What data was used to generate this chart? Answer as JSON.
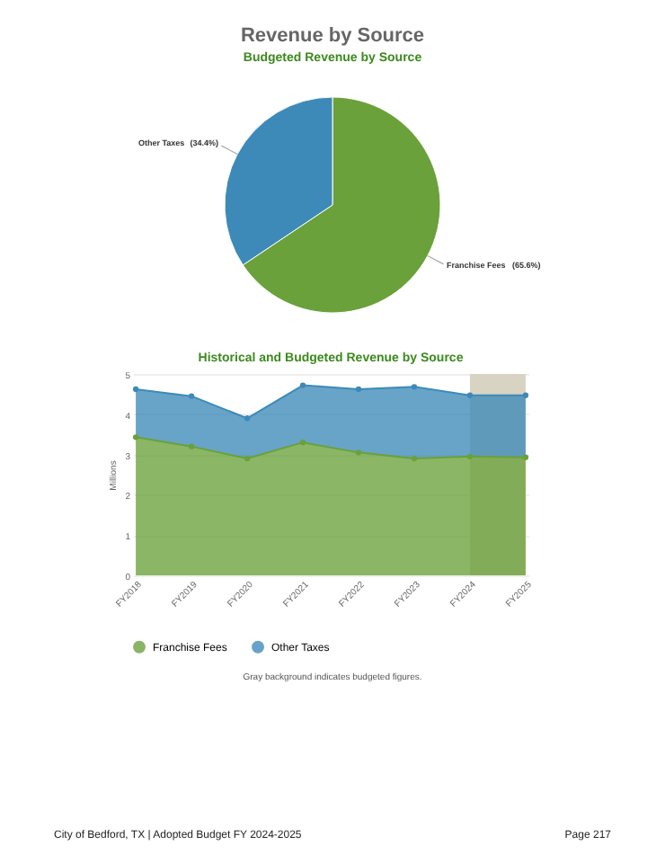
{
  "chart_data": [
    {
      "type": "pie",
      "title": "Revenue by Source",
      "subtitle": "Budgeted Revenue by Source",
      "categories": [
        "Franchise Fees",
        "Other Taxes"
      ],
      "values": [
        65.6,
        34.4
      ],
      "colors": [
        "#6aa13a",
        "#3d8ab9"
      ],
      "value_labels": [
        "(65.6%)",
        "(34.4%)"
      ]
    },
    {
      "type": "area",
      "title": "Historical and Budgeted Revenue by Source",
      "ylabel": "Millions",
      "categories": [
        "FY2018",
        "FY2019",
        "FY2020",
        "FY2021",
        "FY2022",
        "FY2023",
        "FY2024",
        "FY2025"
      ],
      "stacked": true,
      "series": [
        {
          "name": "Franchise Fees",
          "color": "#6aa13a",
          "values": [
            3.43,
            3.2,
            2.9,
            3.3,
            3.05,
            2.9,
            2.95,
            2.93
          ]
        },
        {
          "name": "Other Taxes",
          "color": "#3d8ab9",
          "values": [
            1.19,
            1.25,
            1.0,
            1.42,
            1.57,
            1.78,
            1.52,
            1.54
          ]
        }
      ],
      "ylim": [
        0,
        5
      ],
      "yticks": [
        0,
        1,
        2,
        3,
        4,
        5
      ],
      "grid": "y",
      "legend": "bottom",
      "marker": "circle",
      "bands": [
        {
          "axis": "x",
          "from": "FY2024",
          "to": "FY2025",
          "color": "#d8d3c3"
        }
      ],
      "annotations": [
        "Gray background indicates budgeted figures.",
        "City of Bedford, TX | Adopted Budget FY 2024-2025",
        "Page 217"
      ]
    }
  ]
}
